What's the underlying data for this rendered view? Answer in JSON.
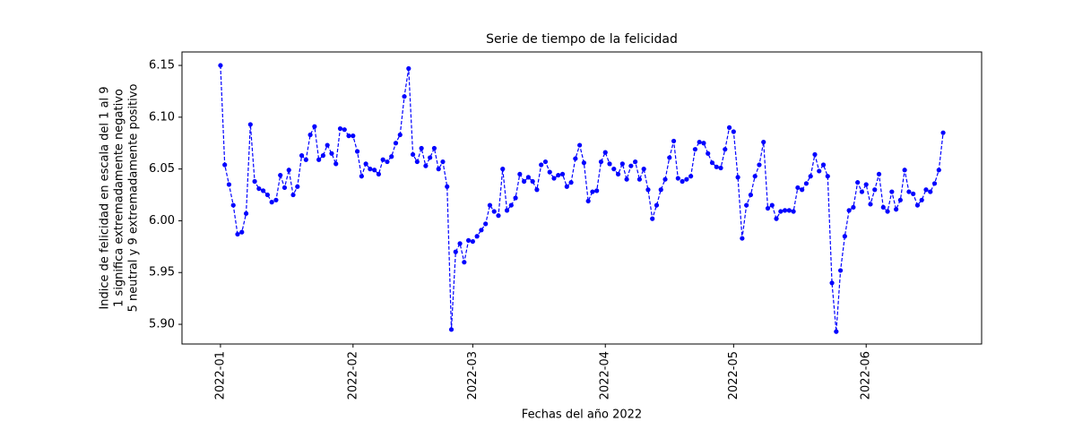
{
  "chart_data": {
    "type": "line",
    "title": "Serie de tiempo de la felicidad",
    "xlabel": "Fechas del año 2022",
    "ylabel": [
      "Indice de felicidad en escala del 1 al 9",
      "1 significa extremadamente negativo",
      "5 neutral y 9 extremadamente positivo"
    ],
    "x": [
      "2022-01-01",
      "2022-01-02",
      "2022-01-03",
      "2022-01-04",
      "2022-01-05",
      "2022-01-06",
      "2022-01-07",
      "2022-01-08",
      "2022-01-09",
      "2022-01-10",
      "2022-01-11",
      "2022-01-12",
      "2022-01-13",
      "2022-01-14",
      "2022-01-15",
      "2022-01-16",
      "2022-01-17",
      "2022-01-18",
      "2022-01-19",
      "2022-01-20",
      "2022-01-21",
      "2022-01-22",
      "2022-01-23",
      "2022-01-24",
      "2022-01-25",
      "2022-01-26",
      "2022-01-27",
      "2022-01-28",
      "2022-01-29",
      "2022-01-30",
      "2022-01-31",
      "2022-02-01",
      "2022-02-02",
      "2022-02-03",
      "2022-02-04",
      "2022-02-05",
      "2022-02-06",
      "2022-02-07",
      "2022-02-08",
      "2022-02-09",
      "2022-02-10",
      "2022-02-11",
      "2022-02-12",
      "2022-02-13",
      "2022-02-14",
      "2022-02-15",
      "2022-02-16",
      "2022-02-17",
      "2022-02-18",
      "2022-02-19",
      "2022-02-20",
      "2022-02-21",
      "2022-02-22",
      "2022-02-23",
      "2022-02-24",
      "2022-02-25",
      "2022-02-26",
      "2022-02-27",
      "2022-02-28",
      "2022-03-01",
      "2022-03-02",
      "2022-03-03",
      "2022-03-04",
      "2022-03-05",
      "2022-03-06",
      "2022-03-07",
      "2022-03-08",
      "2022-03-09",
      "2022-03-10",
      "2022-03-11",
      "2022-03-12",
      "2022-03-13",
      "2022-03-14",
      "2022-03-15",
      "2022-03-16",
      "2022-03-17",
      "2022-03-18",
      "2022-03-19",
      "2022-03-20",
      "2022-03-21",
      "2022-03-22",
      "2022-03-23",
      "2022-03-24",
      "2022-03-25",
      "2022-03-26",
      "2022-03-27",
      "2022-03-28",
      "2022-03-29",
      "2022-03-30",
      "2022-03-31",
      "2022-04-01",
      "2022-04-02",
      "2022-04-03",
      "2022-04-04",
      "2022-04-05",
      "2022-04-06",
      "2022-04-07",
      "2022-04-08",
      "2022-04-09",
      "2022-04-10",
      "2022-04-11",
      "2022-04-12",
      "2022-04-13",
      "2022-04-14",
      "2022-04-15",
      "2022-04-16",
      "2022-04-17",
      "2022-04-18",
      "2022-04-19",
      "2022-04-20",
      "2022-04-21",
      "2022-04-22",
      "2022-04-23",
      "2022-04-24",
      "2022-04-25",
      "2022-04-26",
      "2022-04-27",
      "2022-04-28",
      "2022-04-29",
      "2022-04-30",
      "2022-05-01",
      "2022-05-02",
      "2022-05-03",
      "2022-05-04",
      "2022-05-05",
      "2022-05-06",
      "2022-05-07",
      "2022-05-08",
      "2022-05-09",
      "2022-05-10",
      "2022-05-11",
      "2022-05-12",
      "2022-05-13",
      "2022-05-14",
      "2022-05-15",
      "2022-05-16",
      "2022-05-17",
      "2022-05-18",
      "2022-05-19",
      "2022-05-20",
      "2022-05-21",
      "2022-05-22",
      "2022-05-23",
      "2022-05-24",
      "2022-05-25",
      "2022-05-26",
      "2022-05-27",
      "2022-05-28",
      "2022-05-29",
      "2022-05-30",
      "2022-05-31",
      "2022-06-01",
      "2022-06-02",
      "2022-06-03",
      "2022-06-04",
      "2022-06-05",
      "2022-06-06",
      "2022-06-07",
      "2022-06-08",
      "2022-06-09",
      "2022-06-10",
      "2022-06-11",
      "2022-06-12",
      "2022-06-13",
      "2022-06-14",
      "2022-06-15",
      "2022-06-16",
      "2022-06-17",
      "2022-06-18",
      "2022-06-19"
    ],
    "series": [
      {
        "color": "#0000ff",
        "values": [
          6.15,
          6.054,
          6.035,
          6.015,
          5.987,
          5.989,
          6.007,
          6.093,
          6.038,
          6.031,
          6.029,
          6.025,
          6.018,
          6.02,
          6.044,
          6.032,
          6.049,
          6.025,
          6.033,
          6.063,
          6.059,
          6.083,
          6.091,
          6.059,
          6.063,
          6.073,
          6.065,
          6.055,
          6.089,
          6.088,
          6.082,
          6.082,
          6.067,
          6.043,
          6.055,
          6.05,
          6.049,
          6.045,
          6.059,
          6.057,
          6.062,
          6.075,
          6.083,
          6.12,
          6.147,
          6.064,
          6.057,
          6.07,
          6.053,
          6.061,
          6.07,
          6.05,
          6.057,
          6.033,
          5.895,
          5.97,
          5.978,
          5.96,
          5.981,
          5.98,
          5.985,
          5.991,
          5.997,
          6.015,
          6.009,
          6.005,
          6.05,
          6.01,
          6.015,
          6.022,
          6.045,
          6.038,
          6.042,
          6.038,
          6.03,
          6.054,
          6.057,
          6.047,
          6.041,
          6.044,
          6.045,
          6.033,
          6.037,
          6.06,
          6.073,
          6.056,
          6.019,
          6.028,
          6.029,
          6.057,
          6.066,
          6.055,
          6.05,
          6.045,
          6.055,
          6.04,
          6.053,
          6.057,
          6.04,
          6.05,
          6.03,
          6.002,
          6.015,
          6.03,
          6.04,
          6.061,
          6.077,
          6.041,
          6.038,
          6.04,
          6.043,
          6.069,
          6.076,
          6.075,
          6.065,
          6.056,
          6.052,
          6.051,
          6.069,
          6.09,
          6.086,
          6.042,
          5.983,
          6.015,
          6.025,
          6.043,
          6.054,
          6.076,
          6.012,
          6.015,
          6.002,
          6.009,
          6.01,
          6.01,
          6.009,
          6.032,
          6.03,
          6.036,
          6.043,
          6.064,
          6.048,
          6.054,
          6.043,
          5.94,
          5.893,
          5.952,
          5.985,
          6.01,
          6.013,
          6.037,
          6.028,
          6.035,
          6.016,
          6.03,
          6.045,
          6.013,
          6.009,
          6.028,
          6.011,
          6.02,
          6.049,
          6.028,
          6.026,
          6.015,
          6.02,
          6.03,
          6.028,
          6.036,
          6.049,
          6.085
        ]
      }
    ],
    "xlim": [
      "2021-12-23",
      "2022-06-28"
    ],
    "xticks": [
      {
        "value": "2022-01-01",
        "label": "2022-01"
      },
      {
        "value": "2022-02-01",
        "label": "2022-02"
      },
      {
        "value": "2022-03-01",
        "label": "2022-03"
      },
      {
        "value": "2022-04-01",
        "label": "2022-04"
      },
      {
        "value": "2022-05-01",
        "label": "2022-05"
      },
      {
        "value": "2022-06-01",
        "label": "2022-06"
      }
    ],
    "ylim": [
      5.881,
      6.163
    ],
    "yticks": [
      {
        "value": 5.9,
        "label": "5.90"
      },
      5.95,
      {
        "value": 6.0,
        "label": "6.00"
      },
      6.05,
      {
        "value": 6.1,
        "label": "6.10"
      },
      6.15
    ],
    "line_style": "dashed",
    "marker": "circle",
    "grid": false
  }
}
